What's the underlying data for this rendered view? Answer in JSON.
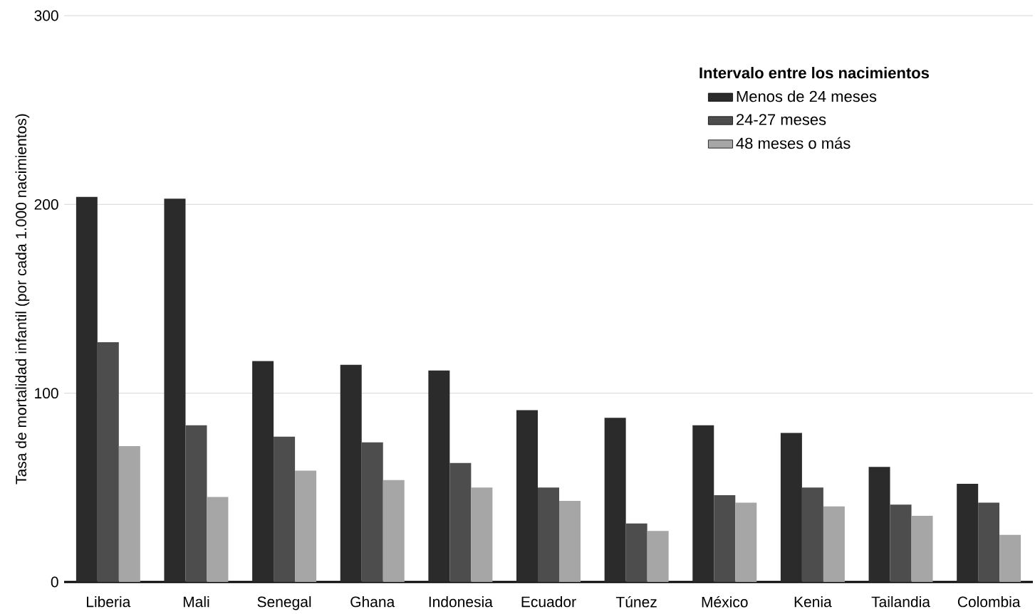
{
  "chart_data": {
    "type": "bar",
    "ylabel": "Tasa de mortalidad infantil (por cada 1.000 nacimientos)",
    "legend_title": "Intervalo entre los nacimientos",
    "categories": [
      "Liberia",
      "Mali",
      "Senegal",
      "Ghana",
      "Indonesia",
      "Ecuador",
      "Túnez",
      "México",
      "Kenia",
      "Tailandia",
      "Colombia"
    ],
    "series": [
      {
        "name": "Menos de 24 meses",
        "color": "#2b2b2b",
        "values": [
          204,
          203,
          117,
          115,
          112,
          91,
          87,
          83,
          79,
          61,
          52
        ]
      },
      {
        "name": "24-27 meses",
        "color": "#4d4d4d",
        "values": [
          127,
          83,
          77,
          74,
          63,
          50,
          31,
          46,
          50,
          41,
          42
        ]
      },
      {
        "name": "48 meses o más",
        "color": "#a6a6a6",
        "values": [
          72,
          45,
          59,
          54,
          50,
          43,
          27,
          42,
          40,
          35,
          25
        ]
      }
    ],
    "ylim": [
      0,
      300
    ],
    "yticks": [
      0,
      100,
      200,
      300
    ],
    "grid": "y",
    "legend": "top right"
  }
}
